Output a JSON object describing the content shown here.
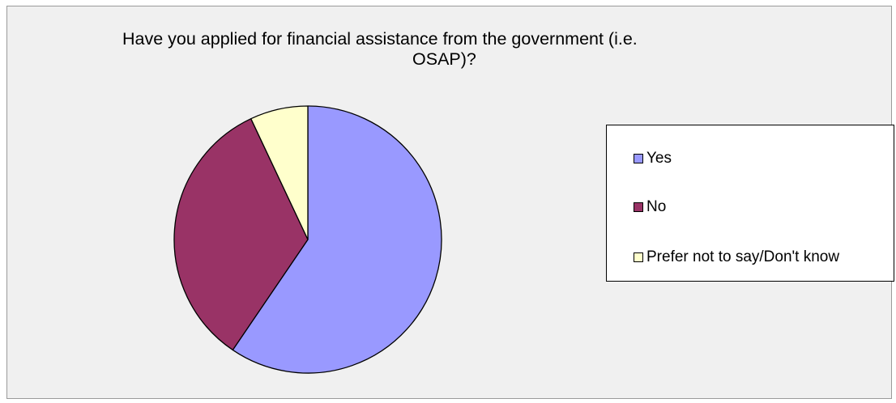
{
  "chart_data": {
    "type": "pie",
    "title": "Have you applied for financial assistance from the government (i.e. OSAP)?",
    "title_lines": [
      "Have you applied for financial assistance from the government (i.e.",
      "OSAP)?"
    ],
    "categories": [
      "Yes",
      "No",
      "Prefer not to say/Don't know"
    ],
    "values": [
      59.5,
      33.5,
      7.0
    ],
    "colors": [
      "#9999ff",
      "#993366",
      "#ffffcc"
    ],
    "start_angle": "top (12 o'clock), clockwise",
    "legend_position": "right"
  }
}
